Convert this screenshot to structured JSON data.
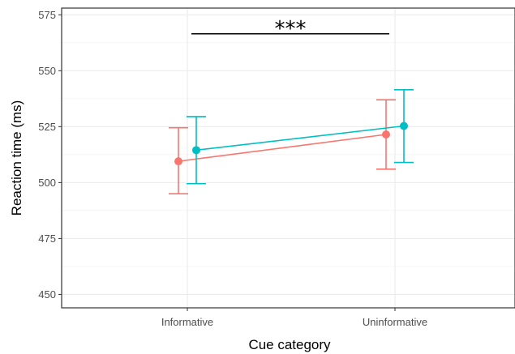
{
  "chart_data": {
    "type": "line",
    "title": "",
    "xlabel": "Cue category",
    "ylabel": "Reaction time (ms)",
    "categories": [
      "Informative",
      "Uninformative"
    ],
    "ylim": [
      444,
      578
    ],
    "yticks": [
      450,
      475,
      500,
      525,
      550,
      575
    ],
    "grid": true,
    "legend": "none",
    "series": [
      {
        "color": "#F8766D",
        "values": [
          509.5,
          521.5
        ],
        "error_low": [
          495,
          506
        ],
        "error_high": [
          524.5,
          537
        ]
      },
      {
        "color": "#00BFC4",
        "values": [
          514.5,
          525.3
        ],
        "error_low": [
          499.5,
          509
        ],
        "error_high": [
          529.5,
          541.5
        ]
      }
    ],
    "annotations": [
      {
        "text": "***",
        "from_category": "Informative",
        "to_category": "Uninformative",
        "y": 566.5
      }
    ]
  }
}
